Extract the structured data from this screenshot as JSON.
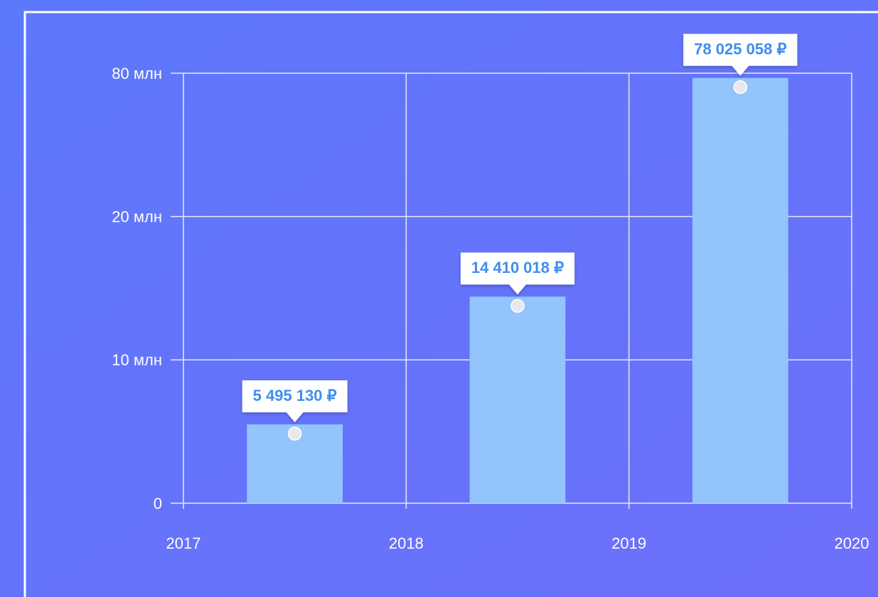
{
  "chart_data": {
    "type": "bar",
    "x": [
      2017.5,
      2018.5,
      2019.5
    ],
    "values": [
      5495130,
      14410018,
      78025058
    ],
    "value_labels": [
      "5 495 130 ₽",
      "14 410 018 ₽",
      "78 025 058 ₽"
    ],
    "color": "#93c4fb",
    "xlim": [
      2017,
      2020
    ],
    "xticks": [
      2017,
      2018,
      2019,
      2020
    ],
    "ylim": [
      0,
      80000000
    ],
    "yticks": [
      0,
      {
        "value": 10000000,
        "label": "10 млн"
      },
      {
        "value": 20000000,
        "label": "20 млн"
      },
      {
        "value": 80000000,
        "label": "80 млн"
      }
    ],
    "grid": true
  }
}
